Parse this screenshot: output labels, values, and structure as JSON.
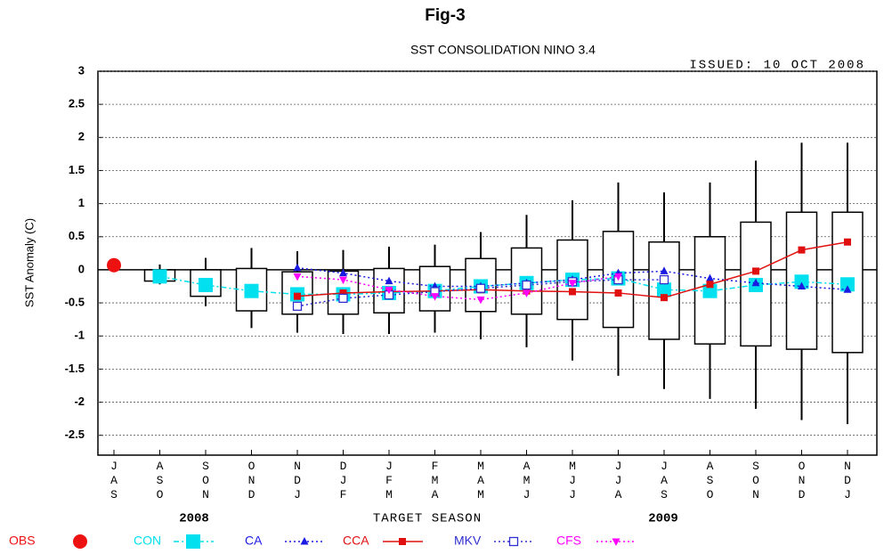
{
  "chart_data": {
    "type": "box",
    "figure_label": "Fig-3",
    "title": "SST CONSOLIDATION NINO 3.4",
    "issued": "ISSUED: 10 OCT 2008",
    "y_label": "SST Anomaly (C)",
    "x_label": "TARGET SEASON",
    "year_labels": [
      "2008",
      "2009"
    ],
    "categories": [
      "JAS",
      "ASO",
      "SON",
      "OND",
      "NDJ",
      "DJF",
      "JFM",
      "FMA",
      "MAM",
      "AMJ",
      "MJJ",
      "JJA",
      "JAS",
      "ASO",
      "SON",
      "OND",
      "NDJ"
    ],
    "ylim": [
      -2.8,
      3
    ],
    "yticks": [
      3,
      2.5,
      2,
      1.5,
      1,
      0.5,
      0,
      -0.5,
      -1,
      -1.5,
      -2,
      -2.5
    ],
    "grid": true,
    "zero_line": true,
    "boxes": {
      "whisker_low": [
        null,
        -0.22,
        -0.55,
        -0.88,
        -0.95,
        -0.97,
        -0.97,
        -0.95,
        -1.05,
        -1.17,
        -1.37,
        -1.6,
        -1.8,
        -1.95,
        -2.1,
        -2.27,
        -2.33
      ],
      "box_low": [
        null,
        -0.17,
        -0.4,
        -0.62,
        -0.67,
        -0.67,
        -0.65,
        -0.62,
        -0.63,
        -0.67,
        -0.75,
        -0.87,
        -1.05,
        -1.12,
        -1.15,
        -1.2,
        -1.25
      ],
      "box_high": [
        null,
        0,
        0,
        0.02,
        -0.03,
        -0.02,
        0.02,
        0.05,
        0.17,
        0.33,
        0.45,
        0.58,
        0.42,
        0.5,
        0.72,
        0.87,
        0.87
      ],
      "whisker_high": [
        null,
        0.08,
        0.18,
        0.33,
        0.28,
        0.3,
        0.35,
        0.38,
        0.57,
        0.83,
        1.05,
        1.32,
        1.17,
        1.32,
        1.65,
        1.92,
        1.92
      ]
    },
    "series": [
      {
        "name": "OBS",
        "color": "#ee1111",
        "marker": "circle",
        "line": "none",
        "values": [
          0.07,
          null,
          null,
          null,
          null,
          null,
          null,
          null,
          null,
          null,
          null,
          null,
          null,
          null,
          null,
          null,
          null
        ]
      },
      {
        "name": "CON",
        "color": "#00e0ee",
        "marker": "big-square",
        "line": "dashdot",
        "values": [
          null,
          -0.1,
          -0.23,
          -0.32,
          -0.37,
          -0.37,
          -0.35,
          -0.32,
          -0.25,
          -0.2,
          -0.15,
          -0.13,
          -0.3,
          -0.32,
          -0.23,
          -0.18,
          -0.22
        ]
      },
      {
        "name": "CA",
        "color": "#1a1ae0",
        "marker": "triangle",
        "line": "dotted",
        "values": [
          null,
          null,
          null,
          null,
          0.03,
          -0.05,
          -0.17,
          -0.25,
          -0.25,
          -0.2,
          -0.15,
          -0.05,
          -0.02,
          -0.13,
          -0.2,
          -0.25,
          -0.3
        ]
      },
      {
        "name": "CCA",
        "color": "#e01010",
        "marker": "square",
        "line": "solid",
        "values": [
          null,
          null,
          null,
          null,
          -0.4,
          -0.35,
          -0.33,
          -0.32,
          -0.3,
          -0.32,
          -0.33,
          -0.35,
          -0.42,
          -0.22,
          -0.02,
          0.3,
          0.42
        ]
      },
      {
        "name": "MKV",
        "color": "#3030d0",
        "marker": "open-square",
        "line": "dotted",
        "values": [
          null,
          null,
          null,
          null,
          -0.55,
          -0.43,
          -0.38,
          -0.33,
          -0.28,
          -0.23,
          -0.18,
          -0.15,
          -0.15,
          null,
          null,
          null,
          null
        ]
      },
      {
        "name": "CFS",
        "color": "#ff00ff",
        "marker": "down-triangle",
        "line": "dotted",
        "values": [
          null,
          null,
          null,
          null,
          -0.1,
          -0.15,
          -0.3,
          -0.4,
          -0.45,
          -0.35,
          -0.2,
          -0.1,
          null,
          null,
          null,
          null,
          null
        ]
      }
    ]
  }
}
